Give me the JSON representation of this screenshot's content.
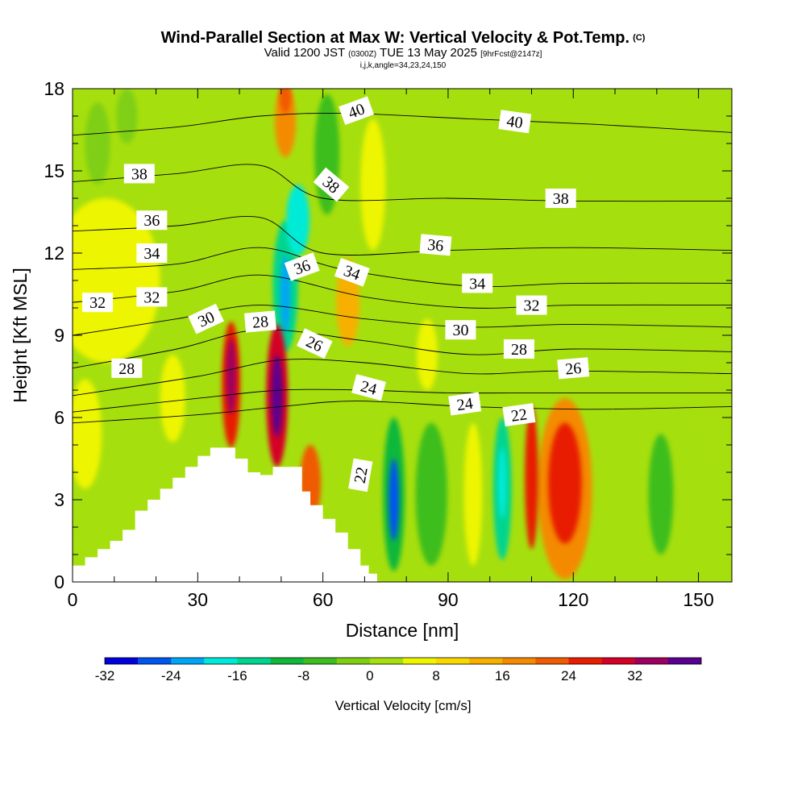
{
  "title": {
    "main": "Wind-Parallel Section at Max W: Vertical Velocity & Pot.Temp.",
    "tag": "(C)",
    "valid_prefix": "Valid 1200 JST",
    "utc": "(0300Z)",
    "date": "TUE 13 May 2025",
    "forecast": "[9hrFcst@2147z]",
    "indices": "i,j,k,angle=34,23,24,150"
  },
  "chart_data": {
    "type": "heatmap",
    "xlabel": "Distance [nm]",
    "ylabel": "Height [Kft MSL]",
    "xlim": [
      0,
      158
    ],
    "ylim": [
      0,
      18
    ],
    "x_ticks": [
      "0",
      "30",
      "60",
      "90",
      "120",
      "150"
    ],
    "y_ticks": [
      "0",
      "3",
      "6",
      "9",
      "12",
      "15",
      "18"
    ],
    "colorbar": {
      "label": "Vertical Velocity [cm/s]",
      "bins": [
        -32,
        -28,
        -24,
        -20,
        -16,
        -12,
        -8,
        -4,
        0,
        4,
        8,
        12,
        16,
        20,
        24,
        28,
        32,
        36
      ],
      "tick_labels": [
        "-32",
        "-24",
        "-16",
        "-8",
        "0",
        "8",
        "16",
        "24",
        "32"
      ],
      "colors": [
        "#0000dd",
        "#0055ee",
        "#00a6f5",
        "#00ead8",
        "#00d590",
        "#10b83a",
        "#3cbe1e",
        "#7ecf12",
        "#a6df0e",
        "#eef500",
        "#f8d800",
        "#f7b000",
        "#f48a00",
        "#f05a00",
        "#e81e00",
        "#d40028",
        "#9e0060",
        "#5a0090"
      ]
    },
    "terrain_kft": [
      [
        0,
        0.6
      ],
      [
        3,
        0.6
      ],
      [
        3,
        0.9
      ],
      [
        6,
        0.9
      ],
      [
        6,
        1.2
      ],
      [
        9,
        1.2
      ],
      [
        9,
        1.5
      ],
      [
        12,
        1.5
      ],
      [
        12,
        1.9
      ],
      [
        15,
        1.9
      ],
      [
        15,
        2.6
      ],
      [
        18,
        2.6
      ],
      [
        18,
        3.0
      ],
      [
        21,
        3.0
      ],
      [
        21,
        3.4
      ],
      [
        24,
        3.4
      ],
      [
        24,
        3.8
      ],
      [
        27,
        3.8
      ],
      [
        27,
        4.2
      ],
      [
        30,
        4.2
      ],
      [
        30,
        4.6
      ],
      [
        33,
        4.6
      ],
      [
        33,
        4.9
      ],
      [
        39,
        4.9
      ],
      [
        39,
        4.5
      ],
      [
        42,
        4.5
      ],
      [
        42,
        4.0
      ],
      [
        45,
        4.0
      ],
      [
        45,
        3.9
      ],
      [
        48,
        3.9
      ],
      [
        48,
        4.2
      ],
      [
        55,
        4.2
      ],
      [
        55,
        3.3
      ],
      [
        57,
        3.3
      ],
      [
        57,
        2.8
      ],
      [
        60,
        2.8
      ],
      [
        60,
        2.3
      ],
      [
        63,
        2.3
      ],
      [
        63,
        1.8
      ],
      [
        66,
        1.8
      ],
      [
        66,
        1.2
      ],
      [
        69,
        1.2
      ],
      [
        69,
        0.6
      ],
      [
        71,
        0.6
      ],
      [
        71,
        0.3
      ],
      [
        73,
        0.3
      ],
      [
        73,
        0
      ]
    ],
    "velocity_cells": [
      {
        "x": 38,
        "y": 7.2,
        "rx": 2.2,
        "ry": 2.3,
        "w": 26
      },
      {
        "x": 38,
        "y": 7.5,
        "rx": 1.2,
        "ry": 1.4,
        "w": 34
      },
      {
        "x": 49,
        "y": 6.8,
        "rx": 2.6,
        "ry": 2.6,
        "w": 28
      },
      {
        "x": 49,
        "y": 6.8,
        "rx": 1.3,
        "ry": 1.5,
        "w": 36
      },
      {
        "x": 57,
        "y": 3.6,
        "rx": 2.5,
        "ry": 1.4,
        "w": 20
      },
      {
        "x": 51,
        "y": 10.8,
        "rx": 3,
        "ry": 2.4,
        "w": -14
      },
      {
        "x": 51,
        "y": 10.5,
        "rx": 1.2,
        "ry": 1.4,
        "w": -24
      },
      {
        "x": 54,
        "y": 13.2,
        "rx": 2.8,
        "ry": 1.3,
        "w": -18
      },
      {
        "x": 51,
        "y": 16.8,
        "rx": 2.5,
        "ry": 1.3,
        "w": 16
      },
      {
        "x": 51,
        "y": 17.7,
        "rx": 1.4,
        "ry": 0.6,
        "w": 22
      },
      {
        "x": 61,
        "y": 15.6,
        "rx": 3,
        "ry": 2.2,
        "w": -8
      },
      {
        "x": 66,
        "y": 10.2,
        "rx": 2.8,
        "ry": 1.6,
        "w": 14
      },
      {
        "x": 77,
        "y": 3.2,
        "rx": 2.6,
        "ry": 2.8,
        "w": -12
      },
      {
        "x": 77,
        "y": 3.0,
        "rx": 1.2,
        "ry": 1.5,
        "w": -26
      },
      {
        "x": 86,
        "y": 3.2,
        "rx": 3.8,
        "ry": 2.6,
        "w": -8
      },
      {
        "x": 96,
        "y": 3.2,
        "rx": 2.2,
        "ry": 2.6,
        "w": 6
      },
      {
        "x": 103,
        "y": 3.4,
        "rx": 2.2,
        "ry": 2.6,
        "w": -14
      },
      {
        "x": 103,
        "y": 3.6,
        "rx": 1,
        "ry": 1.3,
        "w": -20
      },
      {
        "x": 110,
        "y": 3.8,
        "rx": 1.6,
        "ry": 2.6,
        "w": 26
      },
      {
        "x": 118,
        "y": 3.4,
        "rx": 6.5,
        "ry": 3.3,
        "w": 16
      },
      {
        "x": 118,
        "y": 3.6,
        "rx": 4,
        "ry": 2.2,
        "w": 24
      },
      {
        "x": 8,
        "y": 11,
        "rx": 13,
        "ry": 3,
        "w": 6
      },
      {
        "x": 18,
        "y": 12.6,
        "rx": 6,
        "ry": 1.5,
        "w": 2
      },
      {
        "x": 3,
        "y": 5.4,
        "rx": 4,
        "ry": 2,
        "w": 6
      },
      {
        "x": 24,
        "y": 6.7,
        "rx": 3,
        "ry": 1.6,
        "w": 6
      },
      {
        "x": 153,
        "y": 7,
        "rx": 4,
        "ry": 2.8,
        "w": 2
      },
      {
        "x": 72,
        "y": 14.5,
        "rx": 3,
        "ry": 2.4,
        "w": 4
      },
      {
        "x": 85,
        "y": 8.3,
        "rx": 2.5,
        "ry": 1.3,
        "w": 4
      },
      {
        "x": 141,
        "y": 3.2,
        "rx": 3,
        "ry": 2.2,
        "w": -8
      },
      {
        "x": 6,
        "y": 16,
        "rx": 3,
        "ry": 1.5,
        "w": -4
      },
      {
        "x": 13,
        "y": 17,
        "rx": 2.5,
        "ry": 1,
        "w": -4
      }
    ],
    "theta_contours": [
      {
        "level": "22",
        "pts": [
          [
            0,
            5.8
          ],
          [
            30,
            6.1
          ],
          [
            50,
            6.4
          ],
          [
            68,
            6.6
          ],
          [
            95,
            6.4
          ],
          [
            125,
            6.3
          ],
          [
            158,
            6.4
          ]
        ]
      },
      {
        "level": "24",
        "pts": [
          [
            0,
            6.2
          ],
          [
            30,
            6.7
          ],
          [
            50,
            7.0
          ],
          [
            70,
            7.0
          ],
          [
            90,
            6.9
          ],
          [
            120,
            6.9
          ],
          [
            158,
            6.9
          ]
        ]
      },
      {
        "level": "26",
        "pts": [
          [
            0,
            6.8
          ],
          [
            30,
            7.5
          ],
          [
            50,
            8.1
          ],
          [
            70,
            8.0
          ],
          [
            95,
            7.6
          ],
          [
            118,
            7.7
          ],
          [
            158,
            7.6
          ]
        ]
      },
      {
        "level": "28",
        "pts": [
          [
            0,
            7.8
          ],
          [
            25,
            8.5
          ],
          [
            45,
            9.2
          ],
          [
            70,
            8.8
          ],
          [
            95,
            8.3
          ],
          [
            120,
            8.5
          ],
          [
            158,
            8.4
          ]
        ]
      },
      {
        "level": "30",
        "pts": [
          [
            0,
            9.0
          ],
          [
            25,
            9.6
          ],
          [
            45,
            10.1
          ],
          [
            70,
            9.6
          ],
          [
            95,
            9.3
          ],
          [
            120,
            9.4
          ],
          [
            158,
            9.3
          ]
        ]
      },
      {
        "level": "32",
        "pts": [
          [
            0,
            10.2
          ],
          [
            25,
            10.6
          ],
          [
            45,
            11.2
          ],
          [
            70,
            10.4
          ],
          [
            95,
            10.0
          ],
          [
            120,
            10.1
          ],
          [
            158,
            10.1
          ]
        ]
      },
      {
        "level": "34",
        "pts": [
          [
            0,
            11.4
          ],
          [
            25,
            11.6
          ],
          [
            45,
            12.2
          ],
          [
            65,
            11.4
          ],
          [
            95,
            10.8
          ],
          [
            120,
            10.9
          ],
          [
            158,
            10.9
          ]
        ]
      },
      {
        "level": "36",
        "pts": [
          [
            0,
            12.8
          ],
          [
            25,
            13.0
          ],
          [
            45,
            13.3
          ],
          [
            60,
            12.0
          ],
          [
            90,
            12.1
          ],
          [
            120,
            12.2
          ],
          [
            158,
            12.1
          ]
        ]
      },
      {
        "level": "38",
        "pts": [
          [
            0,
            14.6
          ],
          [
            25,
            14.9
          ],
          [
            45,
            15.2
          ],
          [
            60,
            14.0
          ],
          [
            90,
            14.0
          ],
          [
            120,
            13.9
          ],
          [
            158,
            13.9
          ]
        ]
      },
      {
        "level": "40",
        "pts": [
          [
            0,
            16.3
          ],
          [
            25,
            16.6
          ],
          [
            45,
            17.0
          ],
          [
            65,
            17.1
          ],
          [
            95,
            16.9
          ],
          [
            125,
            16.7
          ],
          [
            158,
            16.4
          ]
        ]
      }
    ],
    "contour_labels": [
      {
        "text": "40",
        "x": 68,
        "y": 17.2,
        "rot": -20
      },
      {
        "text": "40",
        "x": 106,
        "y": 16.8,
        "rot": 8
      },
      {
        "text": "38",
        "x": 16,
        "y": 14.9,
        "rot": 0
      },
      {
        "text": "38",
        "x": 62,
        "y": 14.5,
        "rot": 40
      },
      {
        "text": "38",
        "x": 117,
        "y": 14.0,
        "rot": 0
      },
      {
        "text": "36",
        "x": 19,
        "y": 13.2,
        "rot": 0
      },
      {
        "text": "36",
        "x": 55,
        "y": 11.5,
        "rot": -20
      },
      {
        "text": "36",
        "x": 87,
        "y": 12.3,
        "rot": 5
      },
      {
        "text": "34",
        "x": 19,
        "y": 12.0,
        "rot": 0
      },
      {
        "text": "34",
        "x": 67,
        "y": 11.3,
        "rot": 20
      },
      {
        "text": "34",
        "x": 97,
        "y": 10.9,
        "rot": 0
      },
      {
        "text": "32",
        "x": 6,
        "y": 10.2,
        "rot": 0
      },
      {
        "text": "32",
        "x": 19,
        "y": 10.4,
        "rot": 0
      },
      {
        "text": "32",
        "x": 110,
        "y": 10.1,
        "rot": 0
      },
      {
        "text": "30",
        "x": 32,
        "y": 9.6,
        "rot": -25
      },
      {
        "text": "30",
        "x": 93,
        "y": 9.2,
        "rot": 0
      },
      {
        "text": "28",
        "x": 13,
        "y": 7.8,
        "rot": 0
      },
      {
        "text": "28",
        "x": 45,
        "y": 9.5,
        "rot": -5
      },
      {
        "text": "28",
        "x": 107,
        "y": 8.5,
        "rot": 0
      },
      {
        "text": "26",
        "x": 58,
        "y": 8.7,
        "rot": 25
      },
      {
        "text": "26",
        "x": 120,
        "y": 7.8,
        "rot": -5
      },
      {
        "text": "24",
        "x": 71,
        "y": 7.1,
        "rot": 15
      },
      {
        "text": "24",
        "x": 94,
        "y": 6.5,
        "rot": -8
      },
      {
        "text": "22",
        "x": 107,
        "y": 6.1,
        "rot": -8
      },
      {
        "text": "22",
        "x": 69,
        "y": 3.9,
        "rot": -80
      }
    ]
  }
}
